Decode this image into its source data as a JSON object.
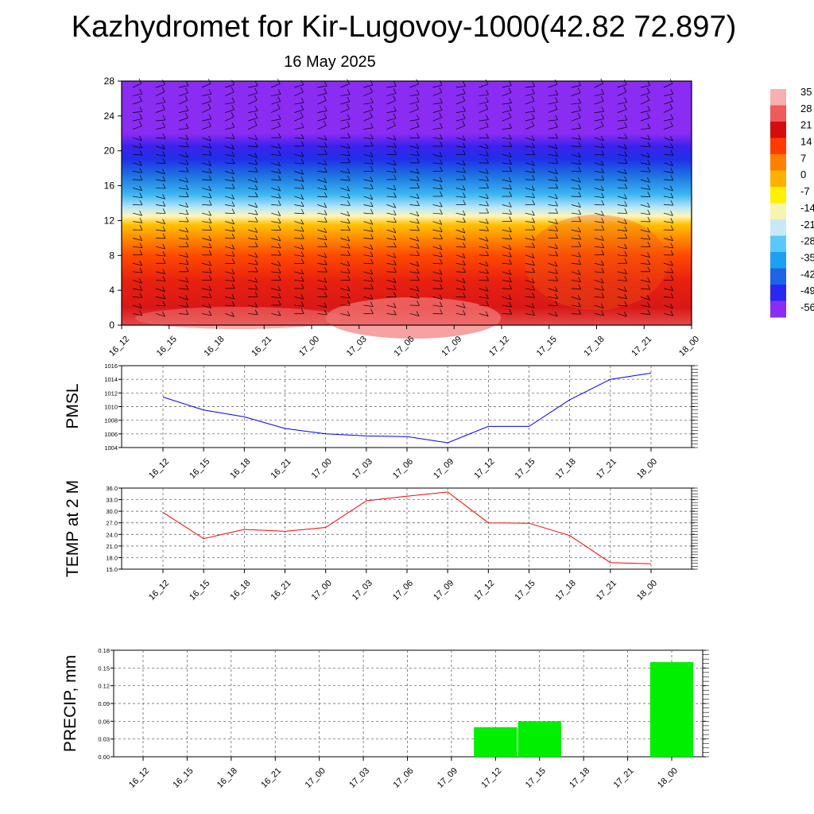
{
  "page": {
    "title": "Kazhydromet for Kir-Lugovoy-1000(42.82 72.897)",
    "subtitle": "16 May 2025"
  },
  "chart_data": [
    {
      "id": "cross-section",
      "type": "heatmap",
      "x_ticks": [
        "16_12",
        "16_15",
        "16_18",
        "16_21",
        "17_00",
        "17_03",
        "17_06",
        "17_09",
        "17_12",
        "17_15",
        "17_18",
        "17_21",
        "18_00"
      ],
      "y_ticks": [
        0,
        4,
        8,
        12,
        16,
        20,
        24,
        28
      ],
      "ylim": [
        0,
        28
      ],
      "colorbar": {
        "labels": [
          "35",
          "28",
          "21",
          "14",
          "7",
          "0",
          "-7",
          "-14",
          "-21",
          "-28",
          "-35",
          "-42",
          "-49",
          "-56"
        ],
        "colors": [
          "#f7b0b0",
          "#ef5a5a",
          "#d40c0c",
          "#ff3b00",
          "#ff7f00",
          "#ffb000",
          "#fff000",
          "#f5f5b0",
          "#c8e8f8",
          "#5ac8f8",
          "#1ea0f0",
          "#1e64e8",
          "#2828f0",
          "#8b2cf2"
        ]
      },
      "bands": [
        {
          "level": 0,
          "color": "#e54a4a"
        },
        {
          "level": 2,
          "color": "#d81818"
        },
        {
          "level": 5,
          "color": "#e82010"
        },
        {
          "level": 8,
          "color": "#ff4a00"
        },
        {
          "level": 10,
          "color": "#ff8c00"
        },
        {
          "level": 11.5,
          "color": "#ffc000"
        },
        {
          "level": 12.5,
          "color": "#fff5b8"
        },
        {
          "level": 13.5,
          "color": "#b8e6f8"
        },
        {
          "level": 15,
          "color": "#3cb6f2"
        },
        {
          "level": 17,
          "color": "#1e78e0"
        },
        {
          "level": 19,
          "color": "#2030e8"
        },
        {
          "level": 20.5,
          "color": "#3a22ec"
        },
        {
          "level": 22,
          "color": "#8a2cf2"
        },
        {
          "level": 28,
          "color": "#8a2cf2"
        }
      ]
    },
    {
      "id": "pmsl",
      "type": "line",
      "ylabel": "PMSL",
      "x": [
        "16_12",
        "16_15",
        "16_18",
        "16_21",
        "17_00",
        "17_03",
        "17_06",
        "17_09",
        "17_12",
        "17_15",
        "17_18",
        "17_21",
        "18_00"
      ],
      "series": [
        {
          "values": [
            1011.4,
            1009.5,
            1008.5,
            1006.8,
            1006.0,
            1005.7,
            1005.6,
            1004.7,
            1007.1,
            1007.1,
            1011.0,
            1014.0,
            1014.9
          ],
          "color": "#0000ff"
        }
      ],
      "ylim": [
        1004,
        1016
      ],
      "y_ticks": [
        "1004",
        "1006",
        "1008",
        "1010",
        "1012",
        "1014",
        "1016"
      ],
      "grid": true
    },
    {
      "id": "temp2m",
      "type": "line",
      "ylabel": "TEMP at 2 M",
      "x": [
        "16_12",
        "16_15",
        "16_18",
        "16_21",
        "17_00",
        "17_03",
        "17_06",
        "17_09",
        "17_12",
        "17_15",
        "17_18",
        "17_21",
        "18_00"
      ],
      "series": [
        {
          "values": [
            29.7,
            22.9,
            25.3,
            24.8,
            25.8,
            32.7,
            33.9,
            35.0,
            27.0,
            26.9,
            23.7,
            16.7,
            16.4
          ],
          "color": "#ff0000"
        }
      ],
      "ylim": [
        15,
        36
      ],
      "y_ticks": [
        "15.0",
        "18.0",
        "21.0",
        "24.0",
        "27.0",
        "30.0",
        "33.0",
        "36.0"
      ],
      "grid": true
    },
    {
      "id": "precip",
      "type": "bar",
      "ylabel": "PRECIP, mm",
      "categories": [
        "16_12",
        "16_15",
        "16_18",
        "16_21",
        "17_00",
        "17_03",
        "17_06",
        "17_09",
        "17_12",
        "17_15",
        "17_18",
        "17_21",
        "18_00"
      ],
      "values": [
        0,
        0,
        0,
        0,
        0,
        0,
        0,
        0,
        0.05,
        0.06,
        0,
        0,
        0.16
      ],
      "color": "#00ee00",
      "ylim": [
        0,
        0.18
      ],
      "y_ticks": [
        "0.00",
        "0.03",
        "0.06",
        "0.09",
        "0.12",
        "0.15",
        "0.18"
      ],
      "grid": true
    }
  ]
}
